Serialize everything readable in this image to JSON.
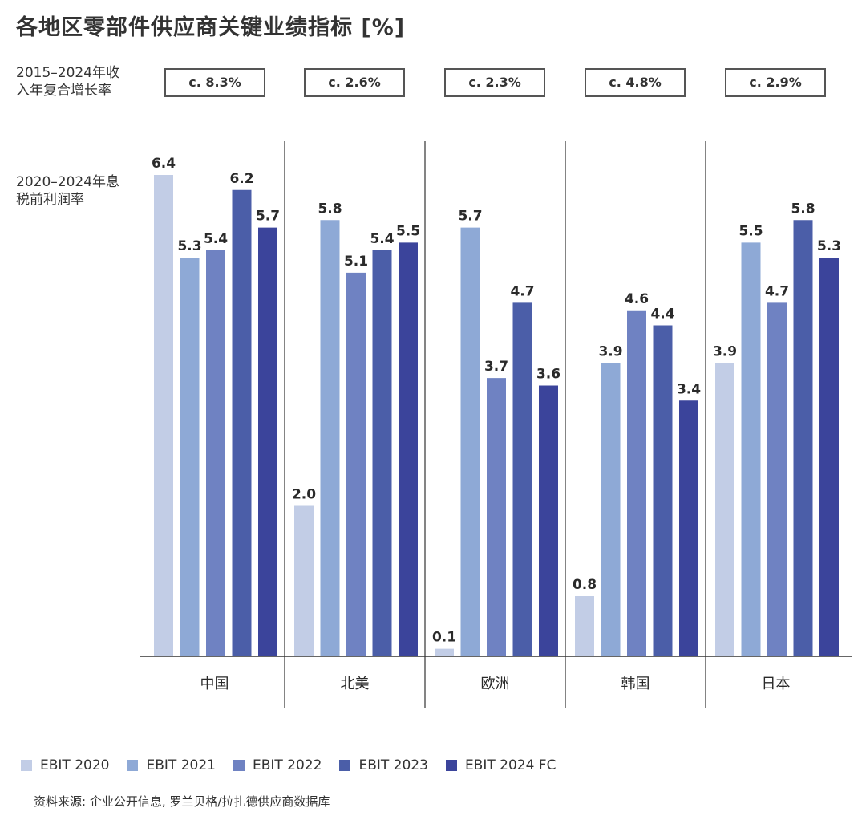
{
  "title": "各地区零部件供应商关键业绩指标 [%]",
  "cagr_label": "2015–2024年收入年复合增长率",
  "cagr_label_line1": "2015–2024年收",
  "cagr_label_line2": "入年复合增长率",
  "ebit_label_line1": "2020–2024年息",
  "ebit_label_line2": "税前利润率",
  "cagr_values": [
    "c. 8.3%",
    "c. 2.6%",
    "c. 2.3%",
    "c. 4.8%",
    "c. 2.9%"
  ],
  "colors": [
    "#c2cde6",
    "#8ea9d6",
    "#6f82c2",
    "#4b5ea8",
    "#3b449b"
  ],
  "source": "资料来源: 企业公开信息, 罗兰贝格/拉扎德供应商数据库",
  "chart_data": {
    "type": "bar",
    "categories": [
      "中国",
      "北美",
      "欧洲",
      "韩国",
      "日本"
    ],
    "series": [
      {
        "name": "EBIT 2020",
        "values": [
          6.4,
          2.0,
          0.1,
          0.8,
          3.9
        ]
      },
      {
        "name": "EBIT 2021",
        "values": [
          5.3,
          5.8,
          5.7,
          3.9,
          5.5
        ]
      },
      {
        "name": "EBIT 2022",
        "values": [
          5.4,
          5.1,
          3.7,
          4.6,
          4.7
        ]
      },
      {
        "name": "EBIT 2023",
        "values": [
          6.2,
          5.4,
          4.7,
          4.4,
          5.8
        ]
      },
      {
        "name": "EBIT 2024 FC",
        "values": [
          5.7,
          5.5,
          3.6,
          3.4,
          5.3
        ]
      }
    ],
    "ylim": [
      0,
      6.8
    ],
    "grid": false,
    "legend": "bottom-left"
  }
}
